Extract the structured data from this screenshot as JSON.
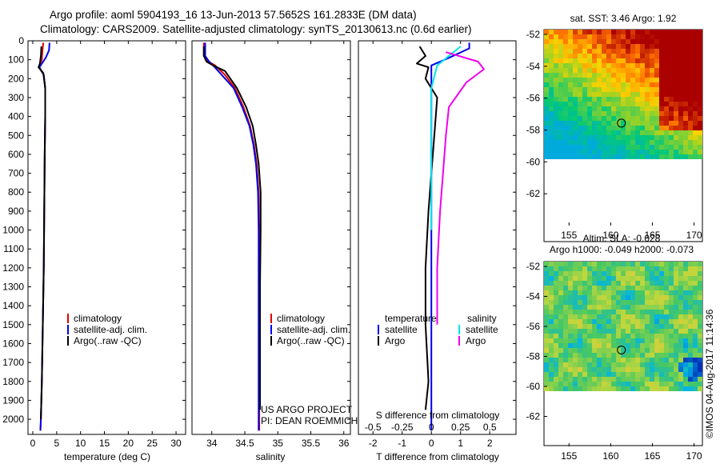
{
  "header": {
    "line1": "Argo profile: aoml 5904193_16 13-Jun-2013 57.5652S 161.2833E (DM data)",
    "line2": "Climatology: CARS2009. Satellite-adjusted climatology: synTS_20130613.nc (0.6d earlier)"
  },
  "credit": "©IMOS 04-Aug-2017 11:14:36",
  "colors": {
    "climatology": "#e00000",
    "satellite": "#0000ee",
    "argo": "#000000",
    "sat_salinity": "#00e5ee",
    "argo_salinity": "#ee00ee"
  },
  "chart_data": [
    {
      "type": "line",
      "id": "temperature",
      "xlabel": "temperature (deg C)",
      "ylabel": "",
      "xlim": [
        -1,
        32
      ],
      "ylim": [
        2080,
        0
      ],
      "xticks": [
        0,
        5,
        10,
        15,
        20,
        25,
        30
      ],
      "yticks": [
        0,
        100,
        200,
        300,
        400,
        500,
        600,
        700,
        800,
        900,
        1000,
        1100,
        1200,
        1300,
        1400,
        1500,
        1600,
        1700,
        1800,
        1900,
        2000
      ],
      "legend": [
        "climatology",
        "satellite-adj. clim.",
        "Argo(..raw -QC)"
      ],
      "series": [
        {
          "name": "climatology",
          "color": "#e00000",
          "points": [
            [
              2.2,
              10
            ],
            [
              2.0,
              60
            ],
            [
              1.9,
              100
            ],
            [
              1.3,
              140
            ],
            [
              2.3,
              180
            ],
            [
              2.6,
              250
            ],
            [
              2.6,
              400
            ],
            [
              2.5,
              600
            ],
            [
              2.4,
              900
            ],
            [
              2.3,
              1200
            ],
            [
              2.1,
              1500
            ],
            [
              1.9,
              1800
            ],
            [
              1.7,
              2000
            ],
            [
              1.6,
              2060
            ]
          ]
        },
        {
          "name": "satellite-adj. clim.",
          "color": "#0000ee",
          "points": [
            [
              3.5,
              10
            ],
            [
              3.4,
              50
            ],
            [
              2.7,
              90
            ],
            [
              1.4,
              140
            ],
            [
              2.3,
              180
            ],
            [
              2.6,
              250
            ],
            [
              2.6,
              400
            ],
            [
              2.5,
              600
            ],
            [
              2.4,
              900
            ],
            [
              2.3,
              1200
            ],
            [
              2.1,
              1500
            ],
            [
              1.9,
              1800
            ],
            [
              1.7,
              2000
            ],
            [
              1.6,
              2060
            ]
          ]
        },
        {
          "name": "Argo(..raw -QC)",
          "color": "#000000",
          "points": [
            [
              1.8,
              30
            ],
            [
              1.7,
              80
            ],
            [
              1.5,
              120
            ],
            [
              1.2,
              140
            ],
            [
              2.2,
              170
            ],
            [
              2.6,
              250
            ],
            [
              2.6,
              400
            ],
            [
              2.5,
              600
            ],
            [
              2.4,
              900
            ],
            [
              2.3,
              1200
            ],
            [
              2.1,
              1500
            ],
            [
              1.9,
              1800
            ],
            [
              1.7,
              2000
            ]
          ]
        }
      ]
    },
    {
      "type": "line",
      "id": "salinity",
      "xlabel": "salinity",
      "xlim": [
        33.7,
        36.1
      ],
      "ylim": [
        2080,
        0
      ],
      "xticks": [
        34,
        34.5,
        35,
        35.5,
        36
      ],
      "legend": [
        "climatology",
        "satellite-adj. clim.",
        "Argo(..raw -QC)"
      ],
      "project": [
        "US ARGO PROJECT",
        "PI: DEAN ROEMMICH"
      ],
      "series": [
        {
          "name": "climatology",
          "color": "#e00000",
          "points": [
            [
              33.88,
              10
            ],
            [
              33.88,
              80
            ],
            [
              33.95,
              110
            ],
            [
              34.05,
              130
            ],
            [
              34.2,
              180
            ],
            [
              34.35,
              250
            ],
            [
              34.48,
              350
            ],
            [
              34.58,
              450
            ],
            [
              34.64,
              550
            ],
            [
              34.68,
              650
            ],
            [
              34.71,
              800
            ],
            [
              34.72,
              1000
            ],
            [
              34.72,
              1300
            ],
            [
              34.72,
              1600
            ],
            [
              34.72,
              2060
            ]
          ]
        },
        {
          "name": "satellite-adj. clim.",
          "color": "#0000ee",
          "points": [
            [
              33.9,
              10
            ],
            [
              33.9,
              80
            ],
            [
              33.96,
              110
            ],
            [
              34.02,
              130
            ],
            [
              34.15,
              180
            ],
            [
              34.33,
              250
            ],
            [
              34.46,
              350
            ],
            [
              34.57,
              450
            ],
            [
              34.63,
              550
            ],
            [
              34.67,
              650
            ],
            [
              34.7,
              800
            ],
            [
              34.71,
              1000
            ],
            [
              34.71,
              1300
            ],
            [
              34.71,
              1600
            ],
            [
              34.71,
              2060
            ]
          ]
        },
        {
          "name": "Argo(..raw -QC)",
          "color": "#000000",
          "points": [
            [
              33.88,
              30
            ],
            [
              33.88,
              80
            ],
            [
              33.92,
              110
            ],
            [
              34.02,
              130
            ],
            [
              34.2,
              160
            ],
            [
              34.38,
              250
            ],
            [
              34.52,
              350
            ],
            [
              34.62,
              450
            ],
            [
              34.67,
              550
            ],
            [
              34.71,
              650
            ],
            [
              34.74,
              800
            ],
            [
              34.74,
              1000
            ],
            [
              34.73,
              1300
            ],
            [
              34.73,
              1600
            ],
            [
              34.73,
              1950
            ]
          ]
        }
      ]
    },
    {
      "type": "line",
      "id": "difference",
      "xlabel": "T difference from climatology",
      "xlabel2": "S difference from climatology",
      "xlim": [
        -2.5,
        2.9
      ],
      "ylim": [
        2080,
        0
      ],
      "xticks": [
        -2,
        -1,
        0,
        1,
        2
      ],
      "xticks2": [
        "-0.5",
        "-0.25",
        "0",
        "0.25",
        "0.5"
      ],
      "legend_left_title": "temperature",
      "legend_right_title": "salinity",
      "legend_left": [
        "satellite",
        "Argo"
      ],
      "legend_right": [
        "satellite",
        "Argo"
      ],
      "series": [
        {
          "name": "T satellite",
          "color": "#0000ee",
          "points": [
            [
              1.3,
              10
            ],
            [
              1.3,
              40
            ],
            [
              0.6,
              90
            ],
            [
              0,
              130
            ],
            [
              0,
              250
            ],
            [
              0,
              500
            ],
            [
              0,
              1000
            ],
            [
              0,
              1500
            ],
            [
              0,
              2060
            ]
          ]
        },
        {
          "name": "T Argo",
          "color": "#000000",
          "points": [
            [
              -0.4,
              30
            ],
            [
              -0.2,
              80
            ],
            [
              -0.5,
              120
            ],
            [
              -0.1,
              140
            ],
            [
              -0.2,
              200
            ],
            [
              0.2,
              300
            ],
            [
              0.1,
              500
            ],
            [
              0,
              700
            ],
            [
              -0.1,
              900
            ],
            [
              -0.2,
              1200
            ],
            [
              -0.2,
              1500
            ],
            [
              -0.1,
              1800
            ],
            [
              -0.2,
              1950
            ]
          ]
        },
        {
          "name": "S satellite",
          "color": "#00e5ee",
          "points": [
            [
              1.0,
              30
            ],
            [
              0.6,
              80
            ],
            [
              0.2,
              130
            ],
            [
              0,
              250
            ],
            [
              0,
              500
            ],
            [
              0,
              700
            ],
            [
              0,
              1000
            ]
          ]
        },
        {
          "name": "S Argo",
          "color": "#ee00ee",
          "points": [
            [
              0.5,
              60
            ],
            [
              1.6,
              110
            ],
            [
              1.8,
              150
            ],
            [
              1.2,
              220
            ],
            [
              0.6,
              350
            ],
            [
              0.5,
              500
            ],
            [
              0.4,
              700
            ],
            [
              0.3,
              900
            ],
            [
              0.2,
              1200
            ],
            [
              0.2,
              1500
            ]
          ]
        }
      ]
    },
    {
      "type": "heatmap",
      "id": "sst_map",
      "title": "sat. SST: 3.46 Argo: 1.92",
      "xlim": [
        152,
        171
      ],
      "ylim": [
        -64,
        -52
      ],
      "xticks": [
        155,
        160,
        165,
        170
      ],
      "yticks": [
        -52,
        -54,
        -56,
        -58,
        -60,
        -62
      ],
      "argo_position": [
        161.28,
        -57.57
      ]
    },
    {
      "type": "heatmap",
      "id": "sla_map",
      "title": "Altim. SLA: -0.028",
      "subtitle": "Argo h1000: -0.049 h2000: -0.073",
      "xlim": [
        152,
        171
      ],
      "ylim": [
        -64,
        -52
      ],
      "xticks": [
        155,
        160,
        165,
        170
      ],
      "yticks": [
        -52,
        -54,
        -56,
        -58,
        -60,
        -62
      ],
      "argo_position": [
        161.28,
        -57.57
      ]
    }
  ]
}
